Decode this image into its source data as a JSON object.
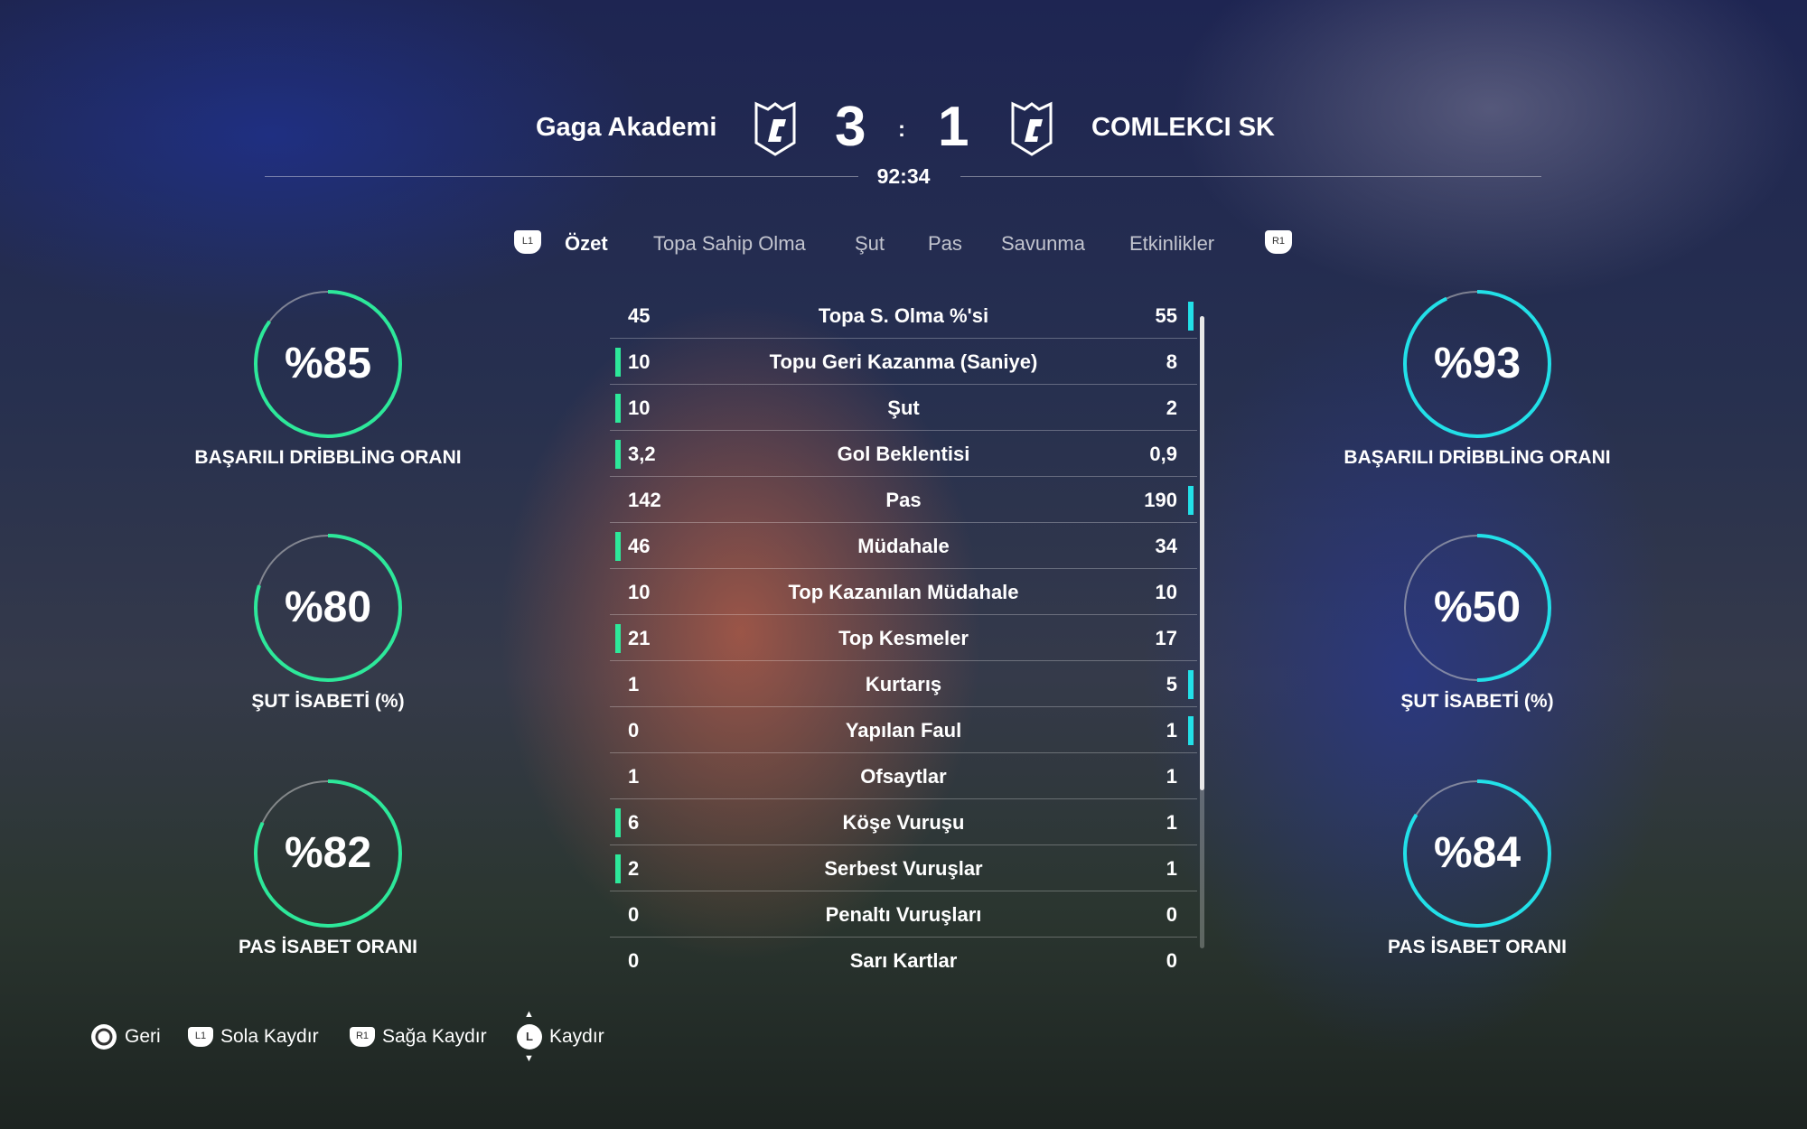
{
  "header": {
    "home_team": "Gaga Akademi",
    "away_team": "COMLEKCI SK",
    "home_score": "3",
    "away_score": "1",
    "separator": ":",
    "time": "92:34"
  },
  "tabs": {
    "left_button": "L1",
    "right_button": "R1",
    "items": [
      {
        "label": "Özet",
        "active": true
      },
      {
        "label": "Topa Sahip Olma"
      },
      {
        "label": "Şut"
      },
      {
        "label": "Pas"
      },
      {
        "label": "Savunma"
      },
      {
        "label": "Etkinlikler"
      }
    ]
  },
  "colors": {
    "home": "#2de89a",
    "away": "#22e0e8"
  },
  "stats": [
    {
      "label": "Topa S. Olma %'si",
      "home": "45",
      "away": "55",
      "leader": "away"
    },
    {
      "label": "Topu Geri Kazanma (Saniye)",
      "home": "10",
      "away": "8",
      "leader": "home"
    },
    {
      "label": "Şut",
      "home": "10",
      "away": "2",
      "leader": "home"
    },
    {
      "label": "Gol Beklentisi",
      "home": "3,2",
      "away": "0,9",
      "leader": "home"
    },
    {
      "label": "Pas",
      "home": "142",
      "away": "190",
      "leader": "away"
    },
    {
      "label": "Müdahale",
      "home": "46",
      "away": "34",
      "leader": "home"
    },
    {
      "label": "Top Kazanılan Müdahale",
      "home": "10",
      "away": "10",
      "leader": null
    },
    {
      "label": "Top Kesmeler",
      "home": "21",
      "away": "17",
      "leader": "home"
    },
    {
      "label": "Kurtarış",
      "home": "1",
      "away": "5",
      "leader": "away"
    },
    {
      "label": "Yapılan Faul",
      "home": "0",
      "away": "1",
      "leader": "away"
    },
    {
      "label": "Ofsaytlar",
      "home": "1",
      "away": "1",
      "leader": null
    },
    {
      "label": "Köşe Vuruşu",
      "home": "6",
      "away": "1",
      "leader": "home"
    },
    {
      "label": "Serbest Vuruşlar",
      "home": "2",
      "away": "1",
      "leader": "home"
    },
    {
      "label": "Penaltı Vuruşları",
      "home": "0",
      "away": "0",
      "leader": null
    },
    {
      "label": "Sarı Kartlar",
      "home": "0",
      "away": "0",
      "leader": null
    }
  ],
  "rings": {
    "home": [
      {
        "value": "%85",
        "percent": 85,
        "label": "BAŞARILI DRİBBLİNG ORANI"
      },
      {
        "value": "%80",
        "percent": 80,
        "label": "ŞUT İSABETİ (%)"
      },
      {
        "value": "%82",
        "percent": 82,
        "label": "PAS İSABET ORANI"
      }
    ],
    "away": [
      {
        "value": "%93",
        "percent": 93,
        "label": "BAŞARILI DRİBBLİNG ORANI"
      },
      {
        "value": "%50",
        "percent": 50,
        "label": "ŞUT İSABETİ (%)"
      },
      {
        "value": "%84",
        "percent": 84,
        "label": "PAS İSABET ORANI"
      }
    ]
  },
  "footer": [
    {
      "button": "circle",
      "label": "Geri"
    },
    {
      "button": "L1",
      "label": "Sola Kaydır"
    },
    {
      "button": "R1",
      "label": "Sağa Kaydır"
    },
    {
      "button": "L",
      "label": "Kaydır"
    }
  ]
}
